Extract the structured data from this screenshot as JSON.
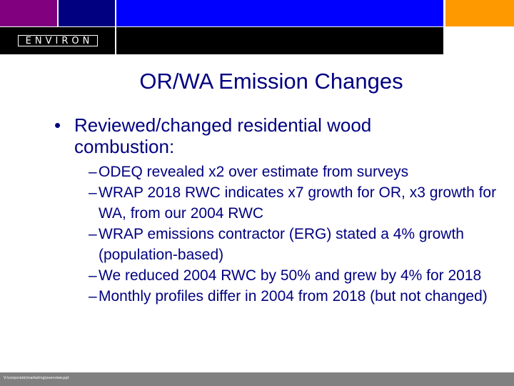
{
  "logo": {
    "text": "ENVIRON"
  },
  "colors": {
    "purple": "#800080",
    "navy": "#000080",
    "blue": "#0000ff",
    "orange": "#ff9900",
    "text": "#000080",
    "footer": "#808080"
  },
  "slide": {
    "title": "OR/WA Emission Changes",
    "bullet": "•",
    "main_point": "Reviewed/changed residential wood combustion:",
    "sub_points": [
      "ODEQ revealed x2 over estimate from surveys",
      "WRAP 2018 RWC indicates x7 growth for OR, x3 growth for WA, from our 2004 RWC",
      "WRAP emissions contractor (ERG) stated a 4% growth (population-based)",
      "We reduced 2004 RWC by 50% and grew by 4% for 2018",
      "Monthly profiles differ in 2004 from 2018 (but not changed)"
    ],
    "dash": "–"
  },
  "footer": {
    "path": "V:\\corporate\\marketing\\overview.ppt"
  }
}
